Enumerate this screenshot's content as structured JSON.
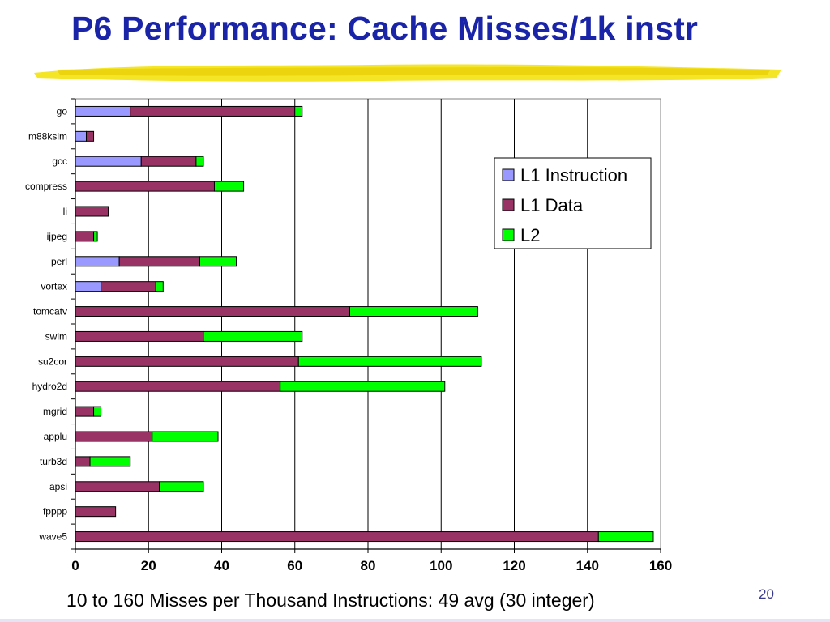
{
  "slide": {
    "title": "P6 Performance: Cache Misses/1k instr",
    "caption": "10 to 160 Misses per Thousand Instructions: 49 avg (30 integer)",
    "page_number": "20",
    "underline_color": "#f2e000"
  },
  "chart_data": {
    "type": "bar",
    "orientation": "horizontal",
    "stacked": true,
    "title": "",
    "xlabel": "",
    "ylabel": "",
    "xlim": [
      0,
      160
    ],
    "x_ticks": [
      0,
      20,
      40,
      60,
      80,
      100,
      120,
      140,
      160
    ],
    "grid": "vertical major gridlines",
    "legend_position": "right",
    "categories": [
      "go",
      "m88ksim",
      "gcc",
      "compress",
      "li",
      "ijpeg",
      "perl",
      "vortex",
      "tomcatv",
      "swim",
      "su2cor",
      "hydro2d",
      "mgrid",
      "applu",
      "turb3d",
      "apsi",
      "fpppp",
      "wave5"
    ],
    "series": [
      {
        "name": "L1 Instruction",
        "color": "#9999ff",
        "values": [
          15,
          3,
          18,
          0,
          0,
          0,
          12,
          7,
          0,
          0,
          0,
          0,
          0,
          0,
          0,
          0,
          0,
          0
        ]
      },
      {
        "name": "L1 Data",
        "color": "#993366",
        "values": [
          45,
          2,
          15,
          38,
          9,
          5,
          22,
          15,
          75,
          35,
          61,
          56,
          5,
          21,
          4,
          23,
          11,
          143
        ]
      },
      {
        "name": "L2",
        "color": "#00ff00",
        "values": [
          2,
          0,
          2,
          8,
          0,
          1,
          10,
          2,
          35,
          27,
          50,
          45,
          2,
          18,
          11,
          12,
          0,
          15
        ]
      }
    ]
  }
}
